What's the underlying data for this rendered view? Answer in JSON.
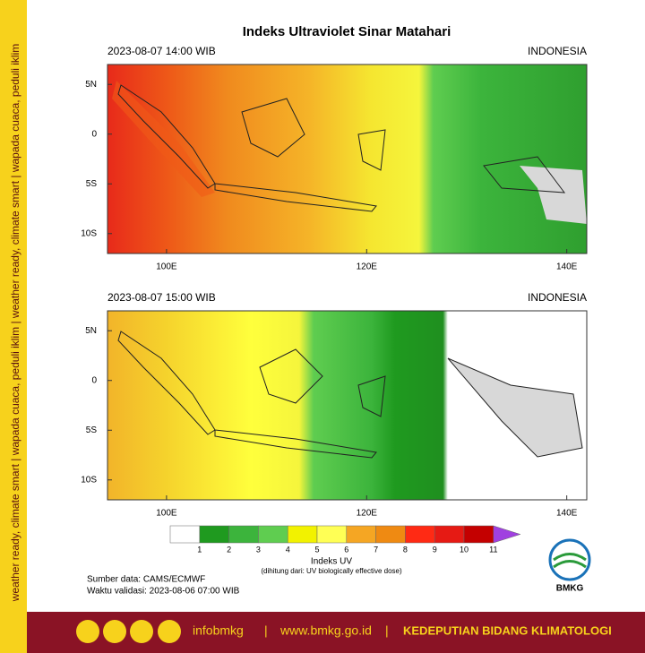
{
  "title": "Indeks Ultraviolet Sinar Matahari",
  "sidebar": "weather ready, climate smart | wapada cuaca, peduli iklim | weather ready, climate smart | wapada cuaca, peduli iklim",
  "map": {
    "lonlim": [
      94.1,
      142
    ],
    "latlim": [
      -12,
      7
    ],
    "lon_ticks": [
      {
        "value": 100,
        "label": "100E"
      },
      {
        "value": 120,
        "label": "120E"
      },
      {
        "value": 140,
        "label": "140E"
      }
    ],
    "lat_ticks": [
      {
        "value": 5,
        "label": "5N"
      },
      0,
      {
        "value": -5,
        "label": "5S"
      },
      {
        "value": -10,
        "label": "10S"
      }
    ]
  },
  "panels": [
    {
      "time": "2023-08-07  14:00 WIB",
      "region": "INDONESIA"
    },
    {
      "time": "2023-08-07  15:00 WIB",
      "region": "INDONESIA"
    }
  ],
  "colorbar": {
    "ticks": [
      1,
      2,
      3,
      4,
      5,
      6,
      7,
      8,
      9,
      10,
      11
    ],
    "colors": [
      "#ffffff",
      "#1f9a1f",
      "#3cb43c",
      "#5fcd50",
      "#f2f200",
      "#ffff55",
      "#f5a623",
      "#ef8a12",
      "#ff2a14",
      "#e61a14",
      "#c40000",
      "#a040e0"
    ],
    "label": "Indeks UV",
    "note": "(dihitung dari: UV biologically effective dose)"
  },
  "source": "Sumber data: CAMS/ECMWF",
  "validity": "Waktu validasi: 2023-08-06 07:00 WIB",
  "logo": "BMKG",
  "footer": {
    "handle": "infobmkg",
    "sep1": "|",
    "site": "www.bmkg.go.id",
    "sep2": "|",
    "dept": "KEDEPUTIAN BIDANG KLIMATOLOGI"
  }
}
